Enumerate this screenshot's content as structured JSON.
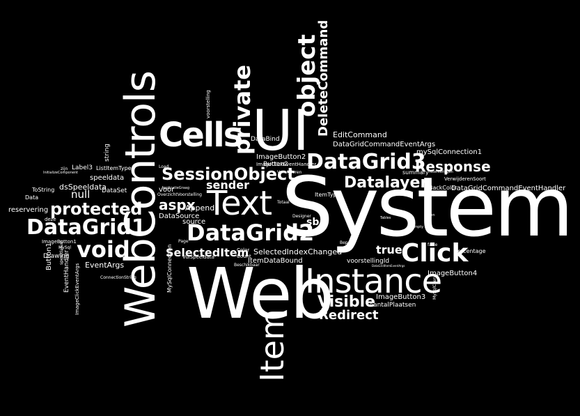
{
  "words": {
    "system": "System",
    "web": "Web",
    "webcontrols": "WebControls",
    "ui": "UI",
    "instance": "Instance",
    "text": "Text",
    "item": "Item",
    "cells": "Cells",
    "datagrid1": "DataGrid1",
    "datagrid2": "DataGrid2",
    "datagrid3": "DataGrid3",
    "sessionobject": "SessionObject",
    "protected": "protected",
    "void": "void",
    "click": "Click",
    "private": "private",
    "object": "object",
    "deletecommand": "DeleteCommand",
    "datalayer": "Datalayer",
    "response": "Response",
    "visible": "Visible",
    "redirect": "Redirect",
    "sender": "sender",
    "aspx": "aspx",
    "selecteditem": "SelectedItem",
    "true": "true",
    "sb": "sb",
    "editcommand": "EditCommand",
    "datagridcommandeventargs": "DataGridCommandEventArgs",
    "mysqlconnection1": "mySqlConnection1",
    "imagebutton2": "ImageButton2",
    "imagebutton3": "ImageButton3",
    "imagebutton4": "ImageButton4",
    "imagebutton1": "ImageButton1",
    "databind": "DataBind",
    "selectedindexchanged": "SelectedIndexChanged",
    "itemdatabound": "ItemDataBound",
    "datagridcommandeventhandler": "DataGridCommandEventHandler",
    "null": "null",
    "eventargs": "EventArgs",
    "dsspeeldata": "dsSpeeldata",
    "speeldata": "speeldata",
    "label3": "Label3",
    "label2": "Label2",
    "label": "Label",
    "listitemtype": "ListItemType",
    "dataset": "DataSet",
    "datasource": "DataSource",
    "source": "source",
    "append": "Append",
    "voor": "voor",
    "reservering": "reservering",
    "button1": "Button1",
    "button2": "Button2",
    "eventhandler": "EventHandler",
    "imageclickeventargs": "ImageClickEventArgs",
    "imageclickeventhandler": "ImageClickEventHandler",
    "drawing": "Drawing",
    "tostring": "ToString",
    "data": "Data",
    "deze": "deze",
    "string": "string",
    "voorstelling": "voorstelling",
    "voorstellingid": "voorstellingId",
    "aantalplaatsen": "AantalPlaatsen",
    "percentage": "percentage",
    "summary": "summary",
    "backcolor": "BackColor",
    "verwijderensoort": "VerwijderenSoort",
    "mysqlconnection": "MySqlConnection",
    "vulspeeldata": "VulSpeeldata",
    "color": "Color",
    "count": "Count",
    "itemtype": "ItemType",
    "verwijderen": "Verwijderen",
    "bepaal": "Bepaal",
    "false": "false",
    "designer": "Designer",
    "beschikbaar": "Beschikbaar",
    "connectionstring": "ConnectionString",
    "overzichtvoorstelling": "OverzichtVoorstelling",
    "applicatiegraag": "ApplicatieGraag",
    "load": "Load",
    "page": "Page",
    "totaal": "Totaal",
    "reserveringen": "reserveringen",
    "mysql": "MySql",
    "mysqlclient": "MySqlClient",
    "empty": "Empty",
    "tables": "Tables",
    "geen": "geen",
    "zijn": "zijn",
    "initializecomponent": "InitializeComponent",
    "speeldatum": "speeldatum",
    "datagrideventargs": "DataGridItemEventArgs"
  }
}
